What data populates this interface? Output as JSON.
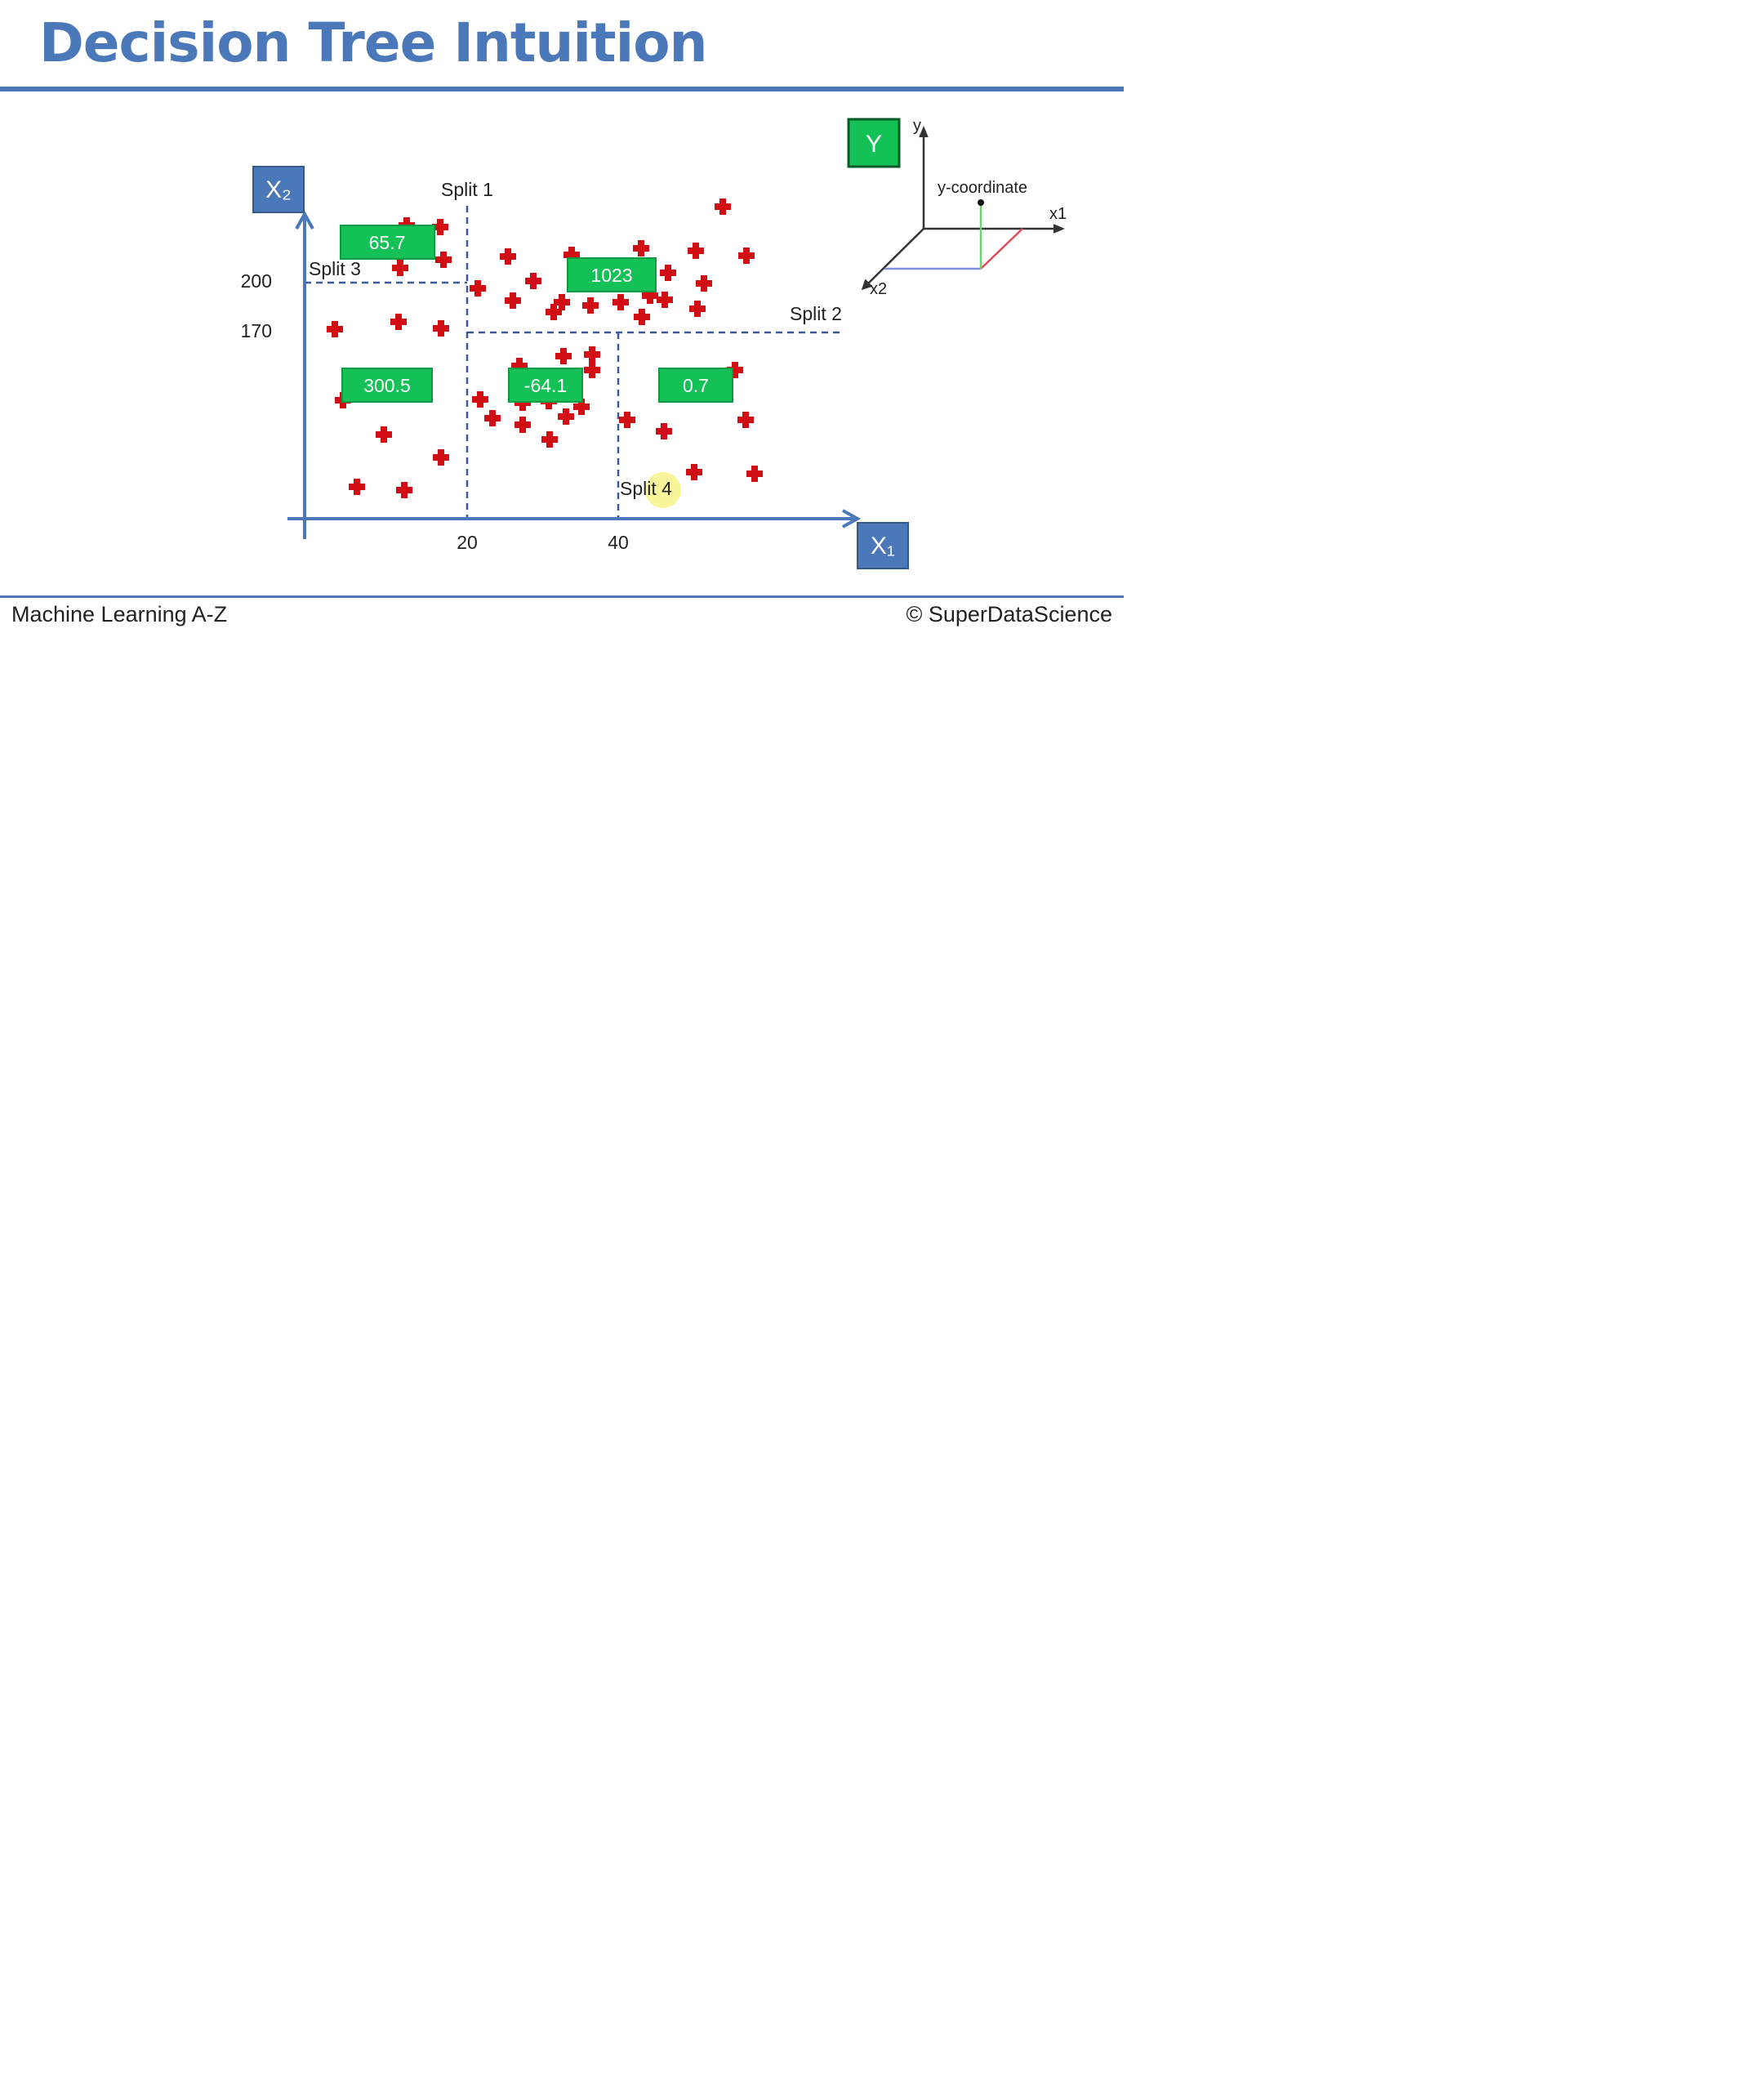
{
  "title": "Decision Tree Intuition",
  "axes": {
    "x_label": "X₁",
    "y_label": "X₂",
    "x_ticks": [
      "20",
      "40"
    ],
    "y_ticks": [
      "200",
      "170"
    ]
  },
  "splits": [
    "Split 1",
    "Split 2",
    "Split 3",
    "Split 4"
  ],
  "leaf_values": [
    "65.7",
    "1023",
    "300.5",
    "-64.1",
    "0.7"
  ],
  "target_badge": "Y",
  "inset": {
    "y": "y",
    "x1": "x1",
    "x2": "x2",
    "caption": "y-coordinate"
  },
  "footer": {
    "left": "Machine Learning A-Z",
    "right": "© SuperDataScience"
  },
  "colors": {
    "accent": "#4a78b8",
    "leaf": "#13c156",
    "point": "#d10e14"
  }
}
